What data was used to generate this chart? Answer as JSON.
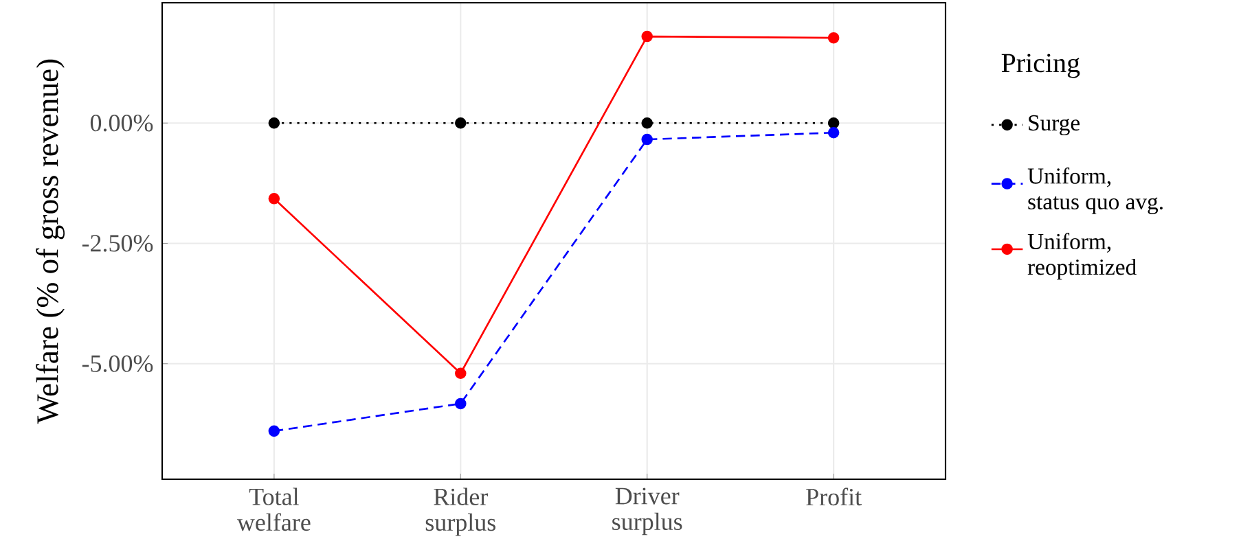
{
  "chart_data": {
    "type": "line",
    "ylabel": "Welfare (% of gross revenue)",
    "legend_title": "Pricing",
    "categories": [
      "Total welfare",
      "Rider surplus",
      "Driver surplus",
      "Profit"
    ],
    "series": [
      {
        "name": "Surge",
        "color": "#000000",
        "line_style": "dotted",
        "values": [
          0,
          0,
          0,
          0
        ]
      },
      {
        "name": "Uniform, status quo avg.",
        "color": "#0000ff",
        "line_style": "dashed",
        "values": [
          -6.4,
          -5.83,
          -0.34,
          -0.2
        ]
      },
      {
        "name": "Uniform, reoptimized",
        "color": "#ff0000",
        "line_style": "solid",
        "values": [
          -1.57,
          -5.2,
          1.8,
          1.77
        ]
      }
    ],
    "ylim": [
      -7.4,
      2.5
    ],
    "yticks": [
      {
        "value": -5,
        "label": "-5.00%"
      },
      {
        "value": -2.5,
        "label": "-2.50%"
      },
      {
        "value": 0,
        "label": "0.00%"
      }
    ],
    "grid": true,
    "legend": "right",
    "marker": "circle"
  }
}
